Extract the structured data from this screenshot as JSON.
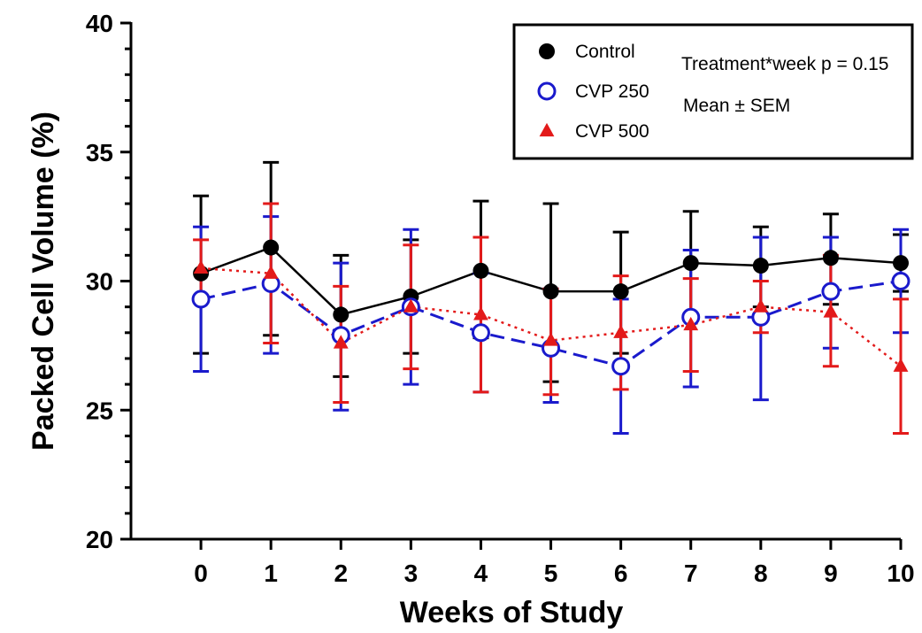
{
  "chart_data": {
    "type": "line",
    "xlabel": "Weeks of Study",
    "ylabel": "Packed Cell Volume (%)",
    "x": [
      0,
      1,
      2,
      3,
      4,
      5,
      6,
      7,
      8,
      9,
      10
    ],
    "xlim": [
      -1,
      10
    ],
    "ylim": [
      20,
      40
    ],
    "yticks": [
      20,
      25,
      30,
      35,
      40
    ],
    "series": [
      {
        "name": "Control",
        "color": "#000000",
        "marker": "filled-circle",
        "line_style": "solid",
        "values": [
          30.3,
          31.3,
          28.7,
          29.4,
          30.4,
          29.6,
          29.6,
          30.7,
          30.6,
          30.9,
          30.7
        ],
        "error_upper": [
          33.3,
          34.6,
          31.0,
          31.6,
          33.1,
          33.0,
          31.9,
          32.7,
          32.1,
          32.6,
          31.8
        ],
        "error_lower": [
          27.2,
          27.9,
          26.3,
          27.2,
          27.8,
          26.1,
          27.2,
          28.6,
          29.0,
          29.1,
          29.6
        ]
      },
      {
        "name": "CVP 250",
        "color": "#1a1acc",
        "marker": "open-circle",
        "line_style": "dashed",
        "values": [
          29.3,
          29.9,
          27.9,
          29.0,
          28.0,
          27.4,
          26.7,
          28.6,
          28.6,
          29.6,
          30.0
        ],
        "error_upper": [
          32.1,
          32.5,
          30.7,
          32.0,
          30.3,
          29.7,
          29.3,
          31.2,
          31.7,
          31.7,
          32.0
        ],
        "error_lower": [
          26.5,
          27.2,
          25.0,
          26.0,
          25.7,
          25.3,
          24.1,
          25.9,
          25.4,
          27.4,
          28.0
        ]
      },
      {
        "name": "CVP 500",
        "color": "#e31a1a",
        "marker": "filled-triangle",
        "line_style": "dotted",
        "values": [
          30.5,
          30.3,
          27.6,
          29.0,
          28.7,
          27.7,
          28.0,
          28.3,
          29.0,
          28.8,
          26.7
        ],
        "error_upper": [
          31.6,
          33.0,
          29.8,
          31.4,
          31.7,
          29.7,
          30.2,
          30.1,
          30.0,
          31.0,
          29.3
        ],
        "error_lower": [
          29.4,
          27.6,
          25.3,
          26.6,
          25.7,
          25.6,
          25.8,
          26.5,
          28.0,
          26.7,
          24.1
        ]
      }
    ],
    "annotations": [
      "Treatment*week p = 0.15",
      "Mean ± SEM"
    ],
    "legend_position": "top-right",
    "grid": false
  }
}
